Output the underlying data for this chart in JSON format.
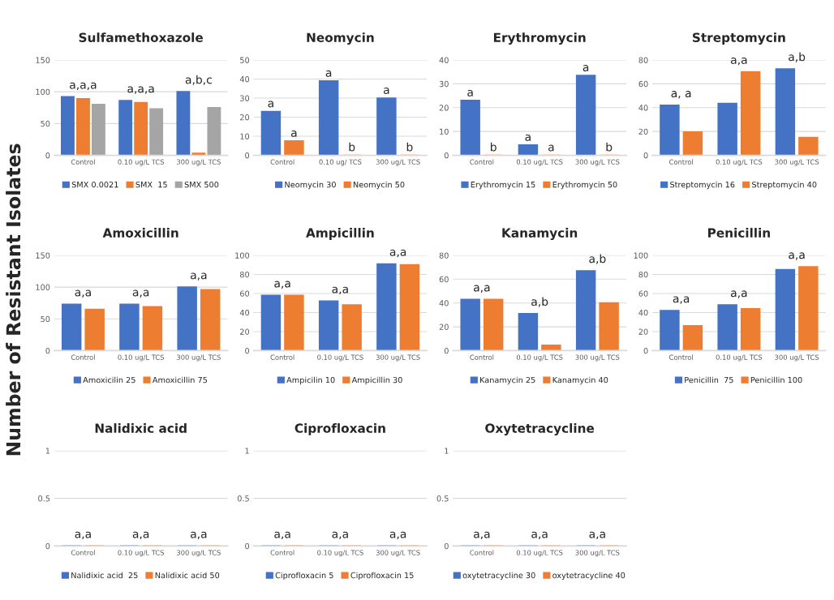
{
  "chart_data": [
    {
      "type": "bar",
      "title": "Sulfamethoxazole",
      "ylabel": "Number of Resistant Isolates",
      "categories": [
        "Control",
        "0.10 ug/L TCS",
        "300 ug/L TCS"
      ],
      "ylim": [
        0,
        150
      ],
      "yticks": [
        0,
        50,
        100,
        150
      ],
      "grid": "y",
      "legend": "bottom",
      "series": [
        {
          "name": "SMX 0.0021",
          "color": "#4472c4",
          "values": [
            92,
            86,
            100
          ]
        },
        {
          "name": "SMX  15",
          "color": "#ed7d31",
          "values": [
            89,
            83,
            3
          ]
        },
        {
          "name": "SMX 500",
          "color": "#a5a5a5",
          "values": [
            80,
            73,
            75
          ]
        }
      ],
      "annotations": [
        "a,a,a",
        "a,a,a",
        "a,b,c"
      ]
    },
    {
      "type": "bar",
      "title": "Neomycin",
      "categories": [
        "Control",
        "0.10 ug/ TCS",
        "300 ug/L TCS"
      ],
      "ylim": [
        0,
        50
      ],
      "yticks": [
        0,
        10,
        20,
        30,
        40,
        50
      ],
      "grid": "y",
      "legend": "bottom",
      "series": [
        {
          "name": "Neomycin 30",
          "color": "#4472c4",
          "values": [
            23,
            39,
            30
          ]
        },
        {
          "name": "Neomycin 50",
          "color": "#ed7d31",
          "values": [
            7.5,
            0,
            0
          ]
        }
      ],
      "annotations": [
        "a",
        "a",
        "a",
        "b",
        "a",
        "b"
      ]
    },
    {
      "type": "bar",
      "title": "Erythromycin",
      "categories": [
        "Control",
        "0.10 ug/L TCS",
        "300 ug/L TCS"
      ],
      "ylim": [
        0,
        40
      ],
      "yticks": [
        0,
        10,
        20,
        30,
        40
      ],
      "grid": "y",
      "legend": "bottom",
      "series": [
        {
          "name": "Erythromycin 15",
          "color": "#4472c4",
          "values": [
            23,
            4.3,
            33.5
          ]
        },
        {
          "name": "Erythromycin 50",
          "color": "#ed7d31",
          "values": [
            0,
            0,
            0
          ]
        }
      ],
      "annotations": [
        "a",
        "b",
        "a",
        "a",
        "a",
        "b"
      ]
    },
    {
      "type": "bar",
      "title": "Streptomycin",
      "categories": [
        "Control",
        "0.10 ug/L TCS",
        "300 ug/L TCS"
      ],
      "ylim": [
        0,
        80
      ],
      "yticks": [
        0,
        20,
        40,
        60,
        80
      ],
      "grid": "y",
      "legend": "bottom",
      "series": [
        {
          "name": "Streptomycin 16",
          "color": "#4472c4",
          "values": [
            42,
            43.5,
            72.5
          ]
        },
        {
          "name": "Streptomycin 40",
          "color": "#ed7d31",
          "values": [
            19.5,
            70,
            15
          ]
        }
      ],
      "annotations": [
        "a, a",
        "a,a",
        "a,b"
      ]
    },
    {
      "type": "bar",
      "title": "Amoxicillin",
      "categories": [
        "Control",
        "0.10 ug/L TCS",
        "300 ug/L TCS"
      ],
      "ylim": [
        0,
        150
      ],
      "yticks": [
        0,
        50,
        100,
        150
      ],
      "grid": "y",
      "legend": "bottom",
      "series": [
        {
          "name": "Amoxicilin 25",
          "color": "#4472c4",
          "values": [
            73,
            73,
            100
          ]
        },
        {
          "name": "Amoxicillin 75",
          "color": "#ed7d31",
          "values": [
            65,
            69,
            96
          ]
        }
      ],
      "annotations": [
        "a,a",
        "a,a",
        "a,a"
      ]
    },
    {
      "type": "bar",
      "title": "Ampicillin",
      "categories": [
        "Control",
        "0.10 ug/L TCS",
        "300 ug/L TCS"
      ],
      "ylim": [
        0,
        100
      ],
      "yticks": [
        0,
        20,
        40,
        60,
        80,
        100
      ],
      "grid": "y",
      "legend": "bottom",
      "series": [
        {
          "name": "Ampicilin 10",
          "color": "#4472c4",
          "values": [
            58,
            52,
            91
          ]
        },
        {
          "name": "Ampicillin 30",
          "color": "#ed7d31",
          "values": [
            58,
            48,
            90
          ]
        }
      ],
      "annotations": [
        "a,a",
        "a,a",
        "a,a"
      ]
    },
    {
      "type": "bar",
      "title": "Kanamycin",
      "categories": [
        "Control",
        "0.10 ug/L TCS",
        "300 ug/L TCS"
      ],
      "ylim": [
        0,
        80
      ],
      "yticks": [
        0,
        20,
        40,
        60,
        80
      ],
      "grid": "y",
      "legend": "bottom",
      "series": [
        {
          "name": "Kanamycin 25",
          "color": "#4472c4",
          "values": [
            43,
            31,
            67
          ]
        },
        {
          "name": "Kanamycin 40",
          "color": "#ed7d31",
          "values": [
            43,
            4.5,
            40
          ]
        }
      ],
      "annotations": [
        "a,a",
        "a,b",
        "a,b"
      ]
    },
    {
      "type": "bar",
      "title": "Penicillin",
      "categories": [
        "Control",
        "0.10 ug/L TCS",
        "300 ug/L TCS"
      ],
      "ylim": [
        0,
        100
      ],
      "yticks": [
        0,
        20,
        40,
        60,
        80,
        100
      ],
      "grid": "y",
      "legend": "bottom",
      "series": [
        {
          "name": "Penicillin  75",
          "color": "#4472c4",
          "values": [
            42,
            48,
            85
          ]
        },
        {
          "name": "Penicillin 100",
          "color": "#ed7d31",
          "values": [
            26,
            44,
            88
          ]
        }
      ],
      "annotations": [
        "a,a",
        "a,a",
        "a,a"
      ]
    },
    {
      "type": "bar",
      "title": "Nalidixic acid",
      "categories": [
        "Control",
        "0.10 ug/L TCS",
        "300 ug/L TCS"
      ],
      "ylim": [
        0,
        1
      ],
      "yticks": [
        0,
        0.5,
        1
      ],
      "grid": "y",
      "legend": "bottom",
      "series": [
        {
          "name": "Nalidixic acid  25",
          "color": "#4472c4",
          "values": [
            0,
            0,
            0
          ]
        },
        {
          "name": "Nalidixic acid 50",
          "color": "#ed7d31",
          "values": [
            0,
            0,
            0
          ]
        }
      ],
      "annotations": [
        "a,a",
        "a,a",
        "a,a"
      ]
    },
    {
      "type": "bar",
      "title": "Ciprofloxacin",
      "categories": [
        "Control",
        "0.10 ug/L TCS",
        "300 ug/L TCS"
      ],
      "ylim": [
        0,
        1
      ],
      "yticks": [
        0,
        0.5,
        1
      ],
      "grid": "y",
      "legend": "bottom",
      "series": [
        {
          "name": "Ciprofloxacin 5",
          "color": "#4472c4",
          "values": [
            0,
            0,
            0
          ]
        },
        {
          "name": "Ciprofloxacin 15",
          "color": "#ed7d31",
          "values": [
            0,
            0,
            0
          ]
        }
      ],
      "annotations": [
        "a,a",
        "a,a",
        "a,a"
      ]
    },
    {
      "type": "bar",
      "title": "Oxytetracycline",
      "categories": [
        "Control",
        "0.10 ug/L TCS",
        "300 ug/L TCS"
      ],
      "ylim": [
        0,
        1
      ],
      "yticks": [
        0,
        0.5,
        1
      ],
      "grid": "y",
      "legend": "bottom",
      "series": [
        {
          "name": "oxytetracycline 30",
          "color": "#4472c4",
          "values": [
            0,
            0,
            0
          ]
        },
        {
          "name": "oxytetracycline 40",
          "color": "#ed7d31",
          "values": [
            0,
            0,
            0
          ]
        }
      ],
      "annotations": [
        "a,a",
        "a,a",
        "a,a"
      ]
    }
  ]
}
